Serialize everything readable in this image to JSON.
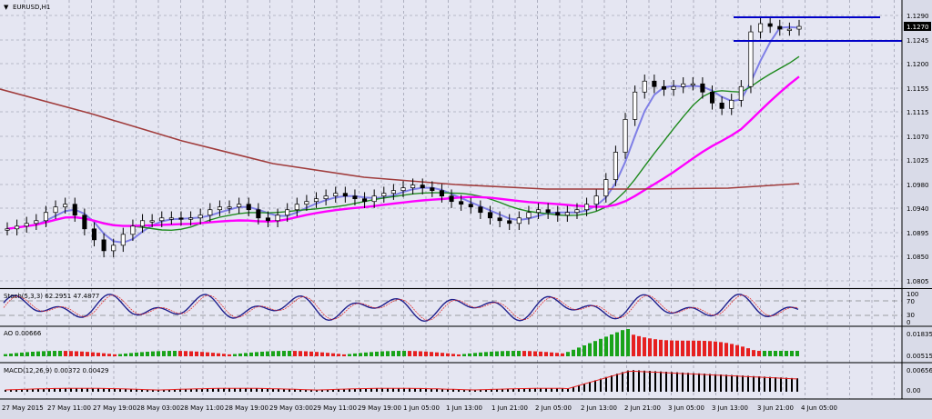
{
  "chart_header": {
    "menu_icon": "triangle-down-icon",
    "symbol": "EURUSD,H1"
  },
  "price_panel": {
    "current_price_badge": "1.1270",
    "y_ticks": [
      "1.1290",
      "1.1245",
      "1.1200",
      "1.1155",
      "1.1115",
      "1.1070",
      "1.1025",
      "1.0980",
      "1.0940",
      "1.0895",
      "1.0850",
      "1.0805"
    ]
  },
  "stoch_panel": {
    "label": "Stoch(5,3,3) 62.2951 47.4877",
    "y_ticks": [
      "100",
      "70",
      "30",
      "0"
    ]
  },
  "ao_panel": {
    "label": "AO 0.00666",
    "y_ticks": [
      "0.01835",
      "0.00515"
    ]
  },
  "macd_panel": {
    "label": "MACD(12,26,9) 0.00372 0.00429",
    "y_ticks": [
      "0.00656",
      "0.00"
    ]
  },
  "time_axis": {
    "ticks": [
      "27 May 2015",
      "27 May 11:00",
      "27 May 19:00",
      "28 May 03:00",
      "28 May 11:00",
      "28 May 19:00",
      "29 May 03:00",
      "29 May 11:00",
      "29 May 19:00",
      "1 Jun 05:00",
      "1 Jun 13:00",
      "1 Jun 21:00",
      "2 Jun 05:00",
      "2 Jun 13:00",
      "2 Jun 21:00",
      "3 Jun 05:00",
      "3 Jun 13:00",
      "3 Jun 21:00",
      "4 Jun 05:00"
    ]
  },
  "colors": {
    "background": "#e5e6f2",
    "grid": "#8a8c9e",
    "ma_fast": "#7f7fe6",
    "ma_mid": "#1f8a1f",
    "ma_slow": "#ff00ff",
    "ma_long": "#a03c3c",
    "level_lines": "#0000c8",
    "ao_up": "#19a319",
    "ao_down": "#e62020",
    "macd_hist": "#000000",
    "macd_signal": "#e62020"
  },
  "chart_data": {
    "type": "candlestick",
    "series": [
      {
        "values": [
          1.09,
          1.0905,
          1.091,
          1.0915,
          1.093,
          1.094,
          1.0945,
          1.0925,
          1.09,
          1.088,
          1.086,
          1.087,
          1.089,
          1.0905,
          1.0915,
          1.0915,
          1.092,
          1.092,
          1.0918,
          1.092,
          1.0925,
          1.0935,
          1.094,
          1.094,
          1.0945,
          1.0935,
          1.092,
          1.0915,
          1.0925,
          1.0935,
          1.0945,
          1.095,
          1.0955,
          1.096,
          1.0965,
          1.096,
          1.0955,
          1.095,
          1.096,
          1.0965,
          1.097,
          1.0975,
          1.098,
          1.0975,
          1.097,
          1.096,
          1.095,
          1.0945,
          1.094,
          1.093,
          1.092,
          1.0915,
          1.091,
          1.092,
          1.093,
          1.0935,
          1.093,
          1.0925,
          1.093,
          1.0935,
          1.0945,
          1.096,
          1.099,
          1.104,
          1.11,
          1.115,
          1.117,
          1.116,
          1.1155,
          1.116,
          1.1165,
          1.1165,
          1.115,
          1.113,
          1.112,
          1.1135,
          1.116,
          1.126,
          1.1275,
          1.127,
          1.1265,
          1.1265,
          1.127
        ]
      }
    ]
  }
}
